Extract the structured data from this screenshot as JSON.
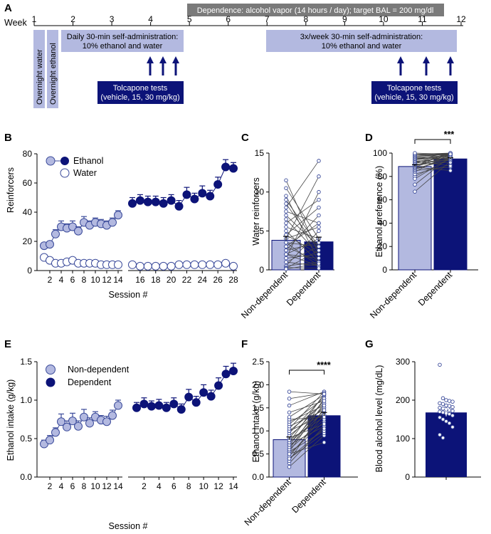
{
  "colors": {
    "light": "#b3b9e0",
    "dark": "#0c1378",
    "grey": "#7a7a7a",
    "point_edge": "#3a4a9a"
  },
  "panelA": {
    "panel_letter": "A",
    "week_label": "Week",
    "week_ticks": [
      "1",
      "2",
      "3",
      "4",
      "5",
      "6",
      "7",
      "8",
      "9",
      "10",
      "11",
      "12"
    ],
    "dependence_label": "Dependence: alcohol vapor (14 hours / day); target BAL = 200 mg/dl",
    "overnight_water": "Overnight water",
    "overnight_ethanol": "Overnight ethanol",
    "daily_sa_line1": "Daily 30-min self-administration:",
    "daily_sa_line2": "10% ethanol and water",
    "weekly_sa_line1": "3x/week 30-min self-administration:",
    "weekly_sa_line2": "10% ethanol and water",
    "tolcapone_line1": "Tolcapone tests",
    "tolcapone_line2": "(vehicle, 15, 30 mg/kg)"
  },
  "chart_data": [
    {
      "panel": "B",
      "type": "line",
      "ylabel": "Reinforcers",
      "xlabel": "Session #",
      "ylim": [
        0,
        80
      ],
      "yticks": [
        "0",
        "20",
        "40",
        "60",
        "80"
      ],
      "xticks": [
        "2",
        "4",
        "6",
        "8",
        "10",
        "12",
        "14",
        "16",
        "18",
        "20",
        "22",
        "24",
        "26",
        "28"
      ],
      "legend": [
        "Ethanol",
        "Water"
      ],
      "series": [
        {
          "name": "Ethanol (pre-dependence)",
          "sessions": [
            1,
            2,
            3,
            4,
            5,
            6,
            7,
            8,
            9,
            10,
            11,
            12,
            13,
            14
          ],
          "values": [
            17,
            18,
            25,
            30,
            29,
            30,
            27,
            33,
            31,
            33,
            32,
            31,
            33,
            38
          ],
          "errors": [
            2,
            2,
            3,
            4,
            3,
            4,
            3,
            4,
            3,
            3,
            3,
            3,
            3,
            3
          ]
        },
        {
          "name": "Ethanol (dependence)",
          "sessions": [
            15,
            16,
            17,
            18,
            19,
            20,
            21,
            22,
            23,
            24,
            25,
            26,
            27,
            28
          ],
          "values": [
            46,
            48,
            47,
            47,
            46,
            48,
            44,
            52,
            49,
            53,
            51,
            59,
            71,
            70
          ],
          "errors": [
            4,
            4,
            4,
            4,
            4,
            4,
            4,
            5,
            4,
            5,
            4,
            5,
            5,
            4
          ]
        },
        {
          "name": "Water (pre-dependence)",
          "sessions": [
            1,
            2,
            3,
            4,
            5,
            6,
            7,
            8,
            9,
            10,
            11,
            12,
            13,
            14
          ],
          "values": [
            9,
            7,
            5,
            5,
            6,
            7,
            5,
            5,
            5,
            5,
            4,
            4,
            4,
            4
          ],
          "errors": [
            1.5,
            1,
            1,
            1,
            1,
            1,
            1,
            1,
            1,
            1,
            1,
            1,
            1,
            1
          ]
        },
        {
          "name": "Water (dependence)",
          "sessions": [
            15,
            16,
            17,
            18,
            19,
            20,
            21,
            22,
            23,
            24,
            25,
            26,
            27,
            28
          ],
          "values": [
            4,
            3,
            3,
            3,
            3,
            3,
            4,
            4,
            4,
            4,
            4,
            4,
            5,
            3
          ],
          "errors": [
            1,
            1,
            1,
            1,
            1,
            1,
            1,
            1,
            1,
            1,
            1,
            1,
            1,
            1
          ]
        }
      ]
    },
    {
      "panel": "C",
      "type": "bar",
      "ylabel": "Water reinforcers",
      "ylim": [
        0,
        15
      ],
      "yticks": [
        "0",
        "5",
        "10",
        "15"
      ],
      "categories": [
        "Non-dependent",
        "Dependent"
      ],
      "values": [
        3.8,
        3.6
      ],
      "errors": [
        0.5,
        0.6
      ]
    },
    {
      "panel": "D",
      "type": "bar",
      "ylabel": "Ethanol preference (%)",
      "ylim": [
        0,
        100
      ],
      "yticks": [
        "0",
        "20",
        "40",
        "60",
        "80",
        "100"
      ],
      "categories": [
        "Non-dependent",
        "Dependent"
      ],
      "values": [
        88.5,
        95
      ],
      "errors": [
        1.5,
        1
      ],
      "significance": "***"
    },
    {
      "panel": "E",
      "type": "line",
      "ylabel": "Ethanol intake (g/kg)",
      "xlabel": "Session #",
      "ylim": [
        0,
        1.5
      ],
      "yticks": [
        "0.0",
        "0.5",
        "1.0",
        "1.5"
      ],
      "xticks_pre": [
        "2",
        "4",
        "6",
        "8",
        "10",
        "12",
        "14"
      ],
      "xticks_dep": [
        "2",
        "4",
        "6",
        "8",
        "10",
        "12",
        "14"
      ],
      "legend": [
        "Non-dependent",
        "Dependent"
      ],
      "series": [
        {
          "name": "Non-dependent",
          "sessions": [
            1,
            2,
            3,
            4,
            5,
            6,
            7,
            8,
            9,
            10,
            11,
            12,
            13,
            14
          ],
          "values": [
            0.43,
            0.48,
            0.58,
            0.72,
            0.65,
            0.73,
            0.66,
            0.78,
            0.7,
            0.78,
            0.74,
            0.72,
            0.8,
            0.93
          ],
          "errors": [
            0.05,
            0.06,
            0.06,
            0.1,
            0.08,
            0.1,
            0.07,
            0.1,
            0.07,
            0.07,
            0.06,
            0.07,
            0.07,
            0.07
          ]
        },
        {
          "name": "Dependent",
          "sessions": [
            1,
            2,
            3,
            4,
            5,
            6,
            7,
            8,
            9,
            10,
            11,
            12,
            13,
            14
          ],
          "values": [
            0.9,
            0.95,
            0.92,
            0.93,
            0.9,
            0.95,
            0.88,
            1.04,
            0.97,
            1.1,
            1.05,
            1.19,
            1.34,
            1.38
          ],
          "errors": [
            0.07,
            0.08,
            0.07,
            0.08,
            0.07,
            0.08,
            0.07,
            0.1,
            0.08,
            0.1,
            0.08,
            0.1,
            0.1,
            0.1
          ]
        }
      ]
    },
    {
      "panel": "F",
      "type": "bar",
      "ylabel": "Ethanol intake (g/kg)",
      "ylim": [
        0,
        2.5
      ],
      "yticks": [
        "0.0",
        "0.5",
        "1.0",
        "1.5",
        "2.0",
        "2.5"
      ],
      "categories": [
        "Non-dependent",
        "Dependent"
      ],
      "values": [
        0.81,
        1.33
      ],
      "errors": [
        0.06,
        0.07
      ],
      "significance": "****"
    },
    {
      "panel": "G",
      "type": "bar",
      "ylabel": "Blood alcohol level (mg/dL)",
      "ylim": [
        0,
        300
      ],
      "yticks": [
        "0",
        "100",
        "200",
        "300"
      ],
      "categories": [
        ""
      ],
      "values": [
        168
      ],
      "errors": [
        10
      ]
    }
  ],
  "c_pairs": [
    [
      11.5,
      2
    ],
    [
      10.5,
      4
    ],
    [
      9.5,
      1
    ],
    [
      9,
      3
    ],
    [
      8.5,
      2.5
    ],
    [
      8,
      14
    ],
    [
      7.5,
      6
    ],
    [
      7,
      3
    ],
    [
      6.5,
      2
    ],
    [
      6,
      9
    ],
    [
      5.5,
      4
    ],
    [
      5,
      1
    ],
    [
      4.5,
      8
    ],
    [
      4.5,
      2
    ],
    [
      4,
      12
    ],
    [
      4,
      5.5
    ],
    [
      3.5,
      3
    ],
    [
      3.5,
      0.5
    ],
    [
      3,
      6
    ],
    [
      3,
      1
    ],
    [
      2.5,
      3.5
    ],
    [
      2.5,
      7
    ],
    [
      2,
      1.5
    ],
    [
      2,
      4
    ],
    [
      2,
      0.5
    ],
    [
      1.5,
      2
    ],
    [
      1.5,
      10
    ],
    [
      1,
      0.5
    ],
    [
      1,
      3
    ],
    [
      0.5,
      1
    ],
    [
      0.5,
      5
    ],
    [
      0.3,
      0.2
    ],
    [
      0.2,
      2.5
    ],
    [
      0.1,
      0.8
    ]
  ],
  "d_pairs": [
    [
      67,
      93
    ],
    [
      73,
      97
    ],
    [
      80,
      95
    ],
    [
      82,
      90
    ],
    [
      84,
      99
    ],
    [
      85,
      88
    ],
    [
      86,
      96
    ],
    [
      87,
      94
    ],
    [
      88,
      98
    ],
    [
      88,
      85
    ],
    [
      89,
      100
    ],
    [
      89,
      97
    ],
    [
      90,
      95
    ],
    [
      90,
      92
    ],
    [
      91,
      98
    ],
    [
      91,
      99
    ],
    [
      92,
      94
    ],
    [
      92,
      100
    ],
    [
      93,
      96
    ],
    [
      93,
      89
    ],
    [
      94,
      98
    ],
    [
      94,
      99
    ],
    [
      95,
      100
    ],
    [
      95,
      97
    ],
    [
      96,
      95
    ],
    [
      96,
      98
    ],
    [
      97,
      100
    ],
    [
      97,
      99
    ],
    [
      98,
      99
    ],
    [
      98,
      100
    ],
    [
      99,
      100
    ],
    [
      99,
      98
    ],
    [
      100,
      99
    ],
    [
      78,
      96
    ]
  ],
  "f_pairs": [
    [
      0.22,
      0.9
    ],
    [
      0.3,
      1.1
    ],
    [
      0.35,
      1.5
    ],
    [
      0.4,
      0.95
    ],
    [
      0.45,
      1.35
    ],
    [
      0.5,
      1.2
    ],
    [
      0.55,
      1.6
    ],
    [
      0.55,
      1.0
    ],
    [
      0.6,
      1.7
    ],
    [
      0.6,
      1.25
    ],
    [
      0.65,
      1.45
    ],
    [
      0.7,
      1.1
    ],
    [
      0.7,
      1.55
    ],
    [
      0.75,
      1.4
    ],
    [
      0.75,
      1.8
    ],
    [
      0.8,
      1.3
    ],
    [
      0.85,
      1.65
    ],
    [
      0.85,
      1.15
    ],
    [
      0.9,
      1.5
    ],
    [
      0.95,
      1.75
    ],
    [
      1.0,
      1.35
    ],
    [
      1.0,
      1.6
    ],
    [
      1.05,
      1.85
    ],
    [
      1.1,
      1.45
    ],
    [
      1.15,
      1.7
    ],
    [
      1.2,
      1.55
    ],
    [
      1.25,
      1.3
    ],
    [
      1.3,
      1.78
    ],
    [
      1.4,
      1.65
    ],
    [
      1.55,
      1.85
    ],
    [
      1.7,
      1.82
    ],
    [
      1.85,
      1.8
    ],
    [
      0.5,
      0.75
    ],
    [
      0.4,
      1.05
    ]
  ],
  "g_points": [
    292,
    205,
    200,
    198,
    196,
    192,
    190,
    186,
    185,
    182,
    180,
    178,
    176,
    174,
    172,
    170,
    168,
    166,
    164,
    160,
    155,
    150,
    145,
    140,
    130,
    110,
    102
  ]
}
